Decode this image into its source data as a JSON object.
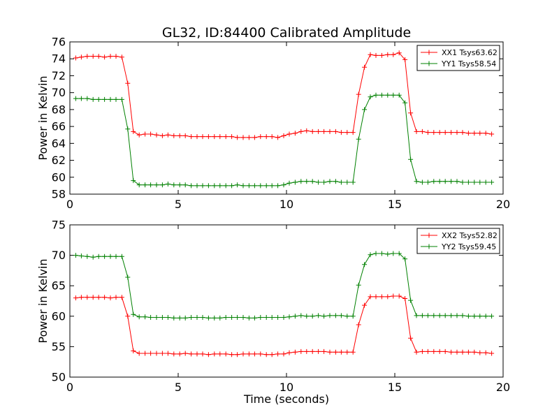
{
  "chart_data": [
    {
      "type": "line",
      "title": "GL32, ID:84400 Calibrated Amplitude",
      "xlabel": "",
      "ylabel": "Power in Kelvin",
      "xlim": [
        0,
        20
      ],
      "ylim": [
        58,
        76
      ],
      "xticks": [
        0,
        5,
        10,
        15,
        20
      ],
      "yticks": [
        58,
        60,
        62,
        64,
        66,
        68,
        70,
        72,
        74,
        76
      ],
      "xtick_labels": [
        "0",
        "5",
        "10",
        "15",
        "20"
      ],
      "ytick_labels": [
        "58",
        "60",
        "62",
        "64",
        "66",
        "68",
        "70",
        "72",
        "74",
        "76"
      ],
      "grid": false,
      "legend_position": "top-right",
      "x": [
        0.27,
        0.53,
        0.8,
        1.07,
        1.33,
        1.6,
        1.87,
        2.13,
        2.4,
        2.67,
        2.93,
        3.2,
        3.47,
        3.73,
        4.0,
        4.27,
        4.53,
        4.8,
        5.07,
        5.33,
        5.6,
        5.87,
        6.13,
        6.4,
        6.67,
        6.93,
        7.2,
        7.47,
        7.73,
        8.0,
        8.27,
        8.53,
        8.8,
        9.07,
        9.33,
        9.6,
        9.87,
        10.13,
        10.4,
        10.67,
        10.93,
        11.2,
        11.47,
        11.73,
        12.0,
        12.27,
        12.53,
        12.8,
        13.07,
        13.33,
        13.6,
        13.87,
        14.13,
        14.4,
        14.67,
        14.93,
        15.2,
        15.47,
        15.73,
        16.0,
        16.27,
        16.53,
        16.8,
        17.07,
        17.33,
        17.6,
        17.87,
        18.13,
        18.4,
        18.67,
        18.93,
        19.2,
        19.47
      ],
      "series": [
        {
          "name": "XX1 Tsys63.62",
          "color": "#ff0000",
          "values": [
            74.1,
            74.2,
            74.3,
            74.3,
            74.3,
            74.2,
            74.3,
            74.3,
            74.2,
            71.1,
            65.4,
            65.0,
            65.1,
            65.1,
            65.0,
            64.9,
            65.0,
            64.9,
            64.9,
            64.9,
            64.8,
            64.8,
            64.8,
            64.8,
            64.8,
            64.8,
            64.8,
            64.8,
            64.7,
            64.7,
            64.7,
            64.7,
            64.8,
            64.8,
            64.8,
            64.7,
            64.9,
            65.1,
            65.2,
            65.4,
            65.5,
            65.4,
            65.4,
            65.4,
            65.4,
            65.4,
            65.3,
            65.3,
            65.3,
            69.8,
            73.0,
            74.5,
            74.4,
            74.4,
            74.5,
            74.5,
            74.7,
            73.9,
            67.6,
            65.4,
            65.4,
            65.3,
            65.3,
            65.3,
            65.3,
            65.3,
            65.3,
            65.3,
            65.2,
            65.2,
            65.2,
            65.2,
            65.1
          ]
        },
        {
          "name": "YY1 Tsys58.54",
          "color": "#008000",
          "values": [
            69.3,
            69.3,
            69.3,
            69.2,
            69.2,
            69.2,
            69.2,
            69.2,
            69.2,
            65.7,
            59.6,
            59.1,
            59.1,
            59.1,
            59.1,
            59.1,
            59.2,
            59.1,
            59.1,
            59.1,
            59.0,
            59.0,
            59.0,
            59.0,
            59.0,
            59.0,
            59.0,
            59.0,
            59.1,
            59.0,
            59.0,
            59.0,
            59.0,
            59.0,
            59.0,
            59.0,
            59.1,
            59.3,
            59.4,
            59.5,
            59.5,
            59.5,
            59.4,
            59.4,
            59.5,
            59.5,
            59.4,
            59.4,
            59.4,
            64.5,
            68.0,
            69.5,
            69.7,
            69.7,
            69.7,
            69.7,
            69.7,
            68.8,
            62.1,
            59.5,
            59.4,
            59.4,
            59.5,
            59.5,
            59.5,
            59.5,
            59.5,
            59.4,
            59.4,
            59.4,
            59.4,
            59.4,
            59.4
          ]
        }
      ]
    },
    {
      "type": "line",
      "title": "",
      "xlabel": "Time (seconds)",
      "ylabel": "Power in Kelvin",
      "xlim": [
        0,
        20
      ],
      "ylim": [
        50,
        75
      ],
      "xticks": [
        0,
        5,
        10,
        15,
        20
      ],
      "yticks": [
        50,
        55,
        60,
        65,
        70,
        75
      ],
      "xtick_labels": [
        "0",
        "5",
        "10",
        "15",
        "20"
      ],
      "ytick_labels": [
        "50",
        "55",
        "60",
        "65",
        "70",
        "75"
      ],
      "grid": false,
      "legend_position": "top-right",
      "x": [
        0.27,
        0.53,
        0.8,
        1.07,
        1.33,
        1.6,
        1.87,
        2.13,
        2.4,
        2.67,
        2.93,
        3.2,
        3.47,
        3.73,
        4.0,
        4.27,
        4.53,
        4.8,
        5.07,
        5.33,
        5.6,
        5.87,
        6.13,
        6.4,
        6.67,
        6.93,
        7.2,
        7.47,
        7.73,
        8.0,
        8.27,
        8.53,
        8.8,
        9.07,
        9.33,
        9.6,
        9.87,
        10.13,
        10.4,
        10.67,
        10.93,
        11.2,
        11.47,
        11.73,
        12.0,
        12.27,
        12.53,
        12.8,
        13.07,
        13.33,
        13.6,
        13.87,
        14.13,
        14.4,
        14.67,
        14.93,
        15.2,
        15.47,
        15.73,
        16.0,
        16.27,
        16.53,
        16.8,
        17.07,
        17.33,
        17.6,
        17.87,
        18.13,
        18.4,
        18.67,
        18.93,
        19.2,
        19.47
      ],
      "series": [
        {
          "name": "XX2 Tsys52.82",
          "color": "#ff0000",
          "values": [
            63.0,
            63.1,
            63.1,
            63.1,
            63.1,
            63.1,
            63.0,
            63.1,
            63.1,
            60.0,
            54.3,
            53.9,
            53.9,
            53.9,
            53.9,
            53.9,
            53.9,
            53.8,
            53.8,
            53.9,
            53.8,
            53.8,
            53.8,
            53.7,
            53.8,
            53.8,
            53.8,
            53.7,
            53.7,
            53.8,
            53.8,
            53.8,
            53.8,
            53.7,
            53.7,
            53.8,
            53.8,
            54.0,
            54.1,
            54.2,
            54.2,
            54.2,
            54.2,
            54.2,
            54.1,
            54.1,
            54.1,
            54.1,
            54.1,
            58.6,
            61.8,
            63.2,
            63.2,
            63.2,
            63.2,
            63.3,
            63.3,
            62.9,
            56.4,
            54.1,
            54.2,
            54.2,
            54.2,
            54.2,
            54.2,
            54.1,
            54.1,
            54.1,
            54.1,
            54.1,
            54.0,
            54.0,
            53.9
          ]
        },
        {
          "name": "YY2 Tsys59.45",
          "color": "#008000",
          "values": [
            70.0,
            69.9,
            69.8,
            69.7,
            69.8,
            69.8,
            69.8,
            69.8,
            69.8,
            66.4,
            60.3,
            59.9,
            59.9,
            59.8,
            59.8,
            59.8,
            59.8,
            59.7,
            59.7,
            59.7,
            59.8,
            59.8,
            59.8,
            59.7,
            59.7,
            59.7,
            59.8,
            59.8,
            59.8,
            59.8,
            59.7,
            59.7,
            59.8,
            59.8,
            59.8,
            59.8,
            59.8,
            59.9,
            60.0,
            60.1,
            60.0,
            60.0,
            60.1,
            60.0,
            60.1,
            60.1,
            60.1,
            60.0,
            60.0,
            65.1,
            68.5,
            70.1,
            70.3,
            70.3,
            70.2,
            70.3,
            70.3,
            69.4,
            62.6,
            60.1,
            60.1,
            60.1,
            60.1,
            60.1,
            60.1,
            60.1,
            60.1,
            60.1,
            60.0,
            60.0,
            60.0,
            60.0,
            60.0
          ]
        }
      ]
    }
  ]
}
